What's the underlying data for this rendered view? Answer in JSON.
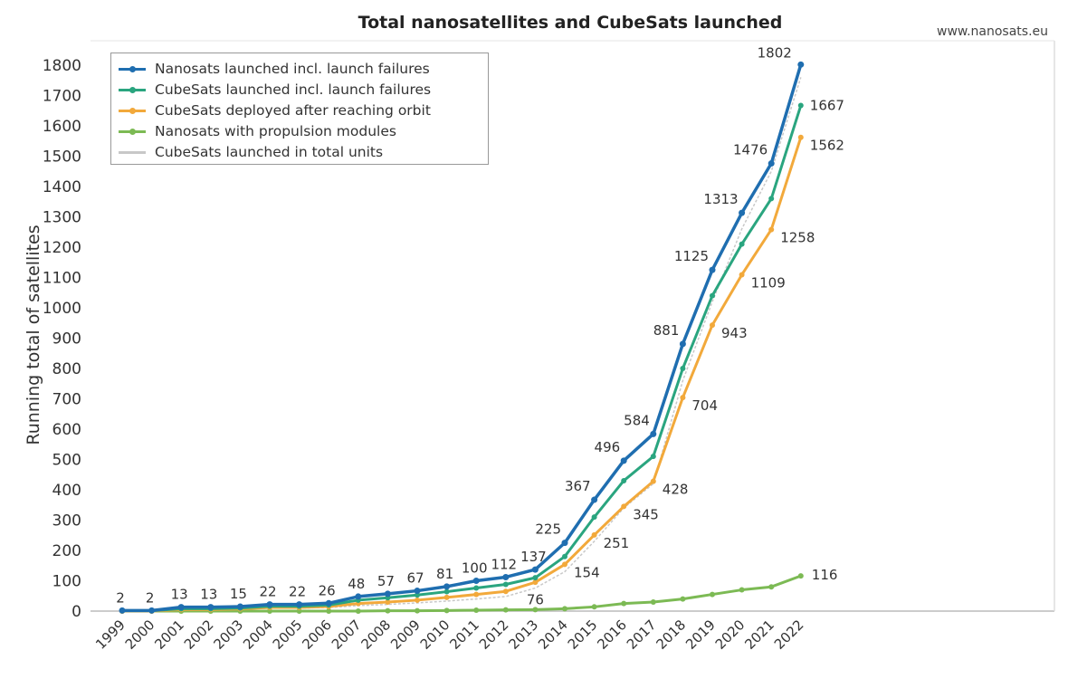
{
  "chart_data": {
    "type": "line",
    "title": "Total nanosatellites and CubeSats launched",
    "source": "www.nanosats.eu",
    "ylabel": "Running total of satellites",
    "xlabel": "",
    "ylim": [
      0,
      1800
    ],
    "y_ticks": [
      0,
      100,
      200,
      300,
      400,
      500,
      600,
      700,
      800,
      900,
      1000,
      1100,
      1200,
      1300,
      1400,
      1500,
      1600,
      1700,
      1800
    ],
    "categories": [
      "1999",
      "2000",
      "2001",
      "2002",
      "2003",
      "2004",
      "2005",
      "2006",
      "2007",
      "2008",
      "2009",
      "2010",
      "2011",
      "2012",
      "2013",
      "2014",
      "2015",
      "2016",
      "2017",
      "2018",
      "2019",
      "2020",
      "2021",
      "2022"
    ],
    "grid": false,
    "legend_position": "top-left",
    "series": [
      {
        "name": "Nanosats launched incl. launch failures",
        "color": "#1f6eb0",
        "values": [
          2,
          2,
          13,
          13,
          15,
          22,
          22,
          26,
          48,
          57,
          67,
          81,
          100,
          112,
          137,
          225,
          367,
          496,
          584,
          881,
          1125,
          1313,
          1476,
          1802
        ],
        "labels": [
          "2",
          "2",
          "13",
          "13",
          "15",
          "22",
          "22",
          "26",
          "48",
          "57",
          "67",
          "81",
          "100",
          "112",
          "137",
          "225",
          "367",
          "496",
          "584",
          "881",
          "1125",
          "1313",
          "1476",
          "1802"
        ]
      },
      {
        "name": "CubeSats launched incl. launch failures",
        "color": "#2aa57f",
        "values": [
          1,
          1,
          8,
          8,
          10,
          16,
          16,
          20,
          36,
          44,
          53,
          64,
          76,
          88,
          110,
          180,
          310,
          430,
          510,
          800,
          1040,
          1210,
          1360,
          1667
        ],
        "labels": [
          "",
          "",
          "",
          "",
          "",
          "",
          "",
          "",
          "",
          "",
          "",
          "",
          "",
          "",
          "",
          "",
          "",
          "",
          "",
          "",
          "",
          "",
          "",
          "1667"
        ]
      },
      {
        "name": "CubeSats deployed after reaching orbit",
        "color": "#f2a93b",
        "values": [
          0,
          0,
          5,
          5,
          7,
          12,
          12,
          15,
          25,
          30,
          36,
          45,
          55,
          65,
          95,
          154,
          251,
          345,
          428,
          704,
          943,
          1109,
          1258,
          1562
        ],
        "labels": [
          "",
          "",
          "",
          "",
          "",
          "",
          "",
          "",
          "",
          "",
          "",
          "",
          "",
          "",
          "",
          "154",
          "251",
          "345",
          "428",
          "704",
          "943",
          "1109",
          "1258",
          "1562"
        ]
      },
      {
        "name": "Nanosats with propulsion modules",
        "color": "#7cba54",
        "values": [
          0,
          0,
          0,
          0,
          0,
          0,
          0,
          0,
          0,
          1,
          1,
          2,
          3,
          4,
          5,
          8,
          14,
          25,
          30,
          40,
          55,
          70,
          80,
          116
        ],
        "labels": [
          "",
          "",
          "",
          "",
          "",
          "",
          "",
          "",
          "",
          "",
          "",
          "",
          "",
          "",
          "",
          "",
          "",
          "",
          "",
          "",
          "",
          "",
          "",
          "116"
        ]
      },
      {
        "name": "CubeSats launched in total units",
        "color": "#c8c8c8",
        "values": [
          0,
          0,
          4,
          4,
          6,
          10,
          10,
          12,
          18,
          22,
          27,
          33,
          40,
          48,
          76,
          130,
          230,
          340,
          420,
          760,
          1020,
          1260,
          1450,
          1760
        ],
        "labels": [
          "",
          "",
          "",
          "",
          "",
          "",
          "",
          "",
          "",
          "",
          "",
          "",
          "",
          "",
          "76",
          "",
          "",
          "",
          "",
          "",
          "",
          "",
          "",
          ""
        ]
      }
    ]
  }
}
